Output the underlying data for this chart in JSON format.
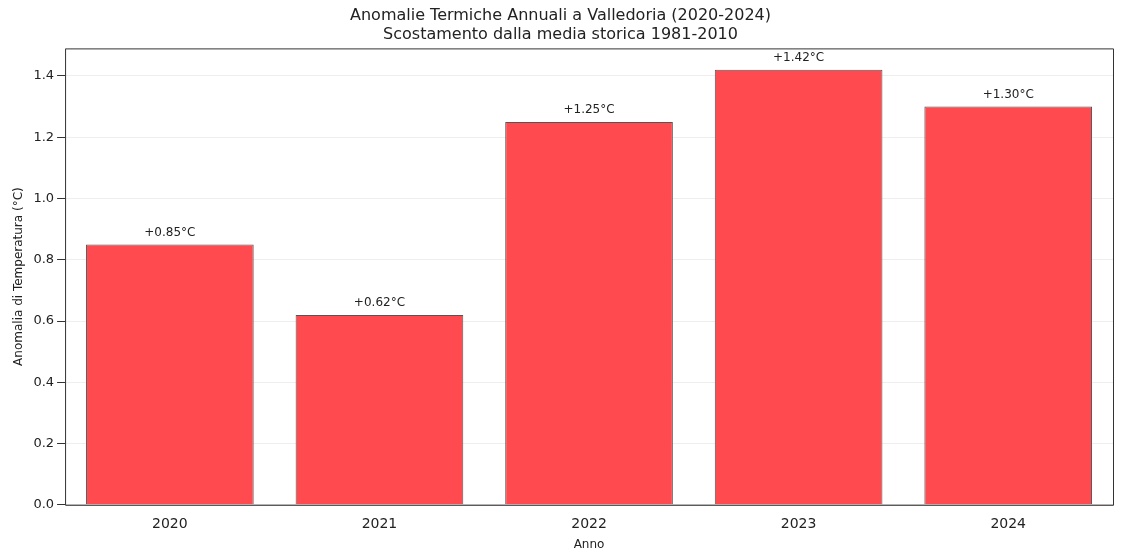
{
  "chart_data": {
    "type": "bar",
    "title": "Anomalie Termiche Annuali a Valledoria (2020-2024)",
    "subtitle": "Scostamento dalla media storica 1981-2010",
    "xlabel": "Anno",
    "ylabel": "Anomalia di Temperatura (°C)",
    "categories": [
      "2020",
      "2021",
      "2022",
      "2023",
      "2024"
    ],
    "values": [
      0.85,
      0.62,
      1.25,
      1.42,
      1.3
    ],
    "value_labels": [
      "+0.85°C",
      "+0.62°C",
      "+1.25°C",
      "+1.42°C",
      "+1.30°C"
    ],
    "color": "#ff4a4f",
    "ylim": [
      0,
      1.49
    ],
    "yticks": [
      {
        "value": 0,
        "label": "0.0"
      },
      {
        "value": 0.2,
        "label": "0.2"
      },
      {
        "value": 0.4,
        "label": "0.4"
      },
      {
        "value": 0.6,
        "label": "0.6"
      },
      {
        "value": 0.8,
        "label": "0.8"
      },
      {
        "value": 1.0,
        "label": "1.0"
      },
      {
        "value": 1.2,
        "label": "1.2"
      },
      {
        "value": 1.4,
        "label": "1.4"
      }
    ],
    "grid": "y",
    "legend": false
  }
}
